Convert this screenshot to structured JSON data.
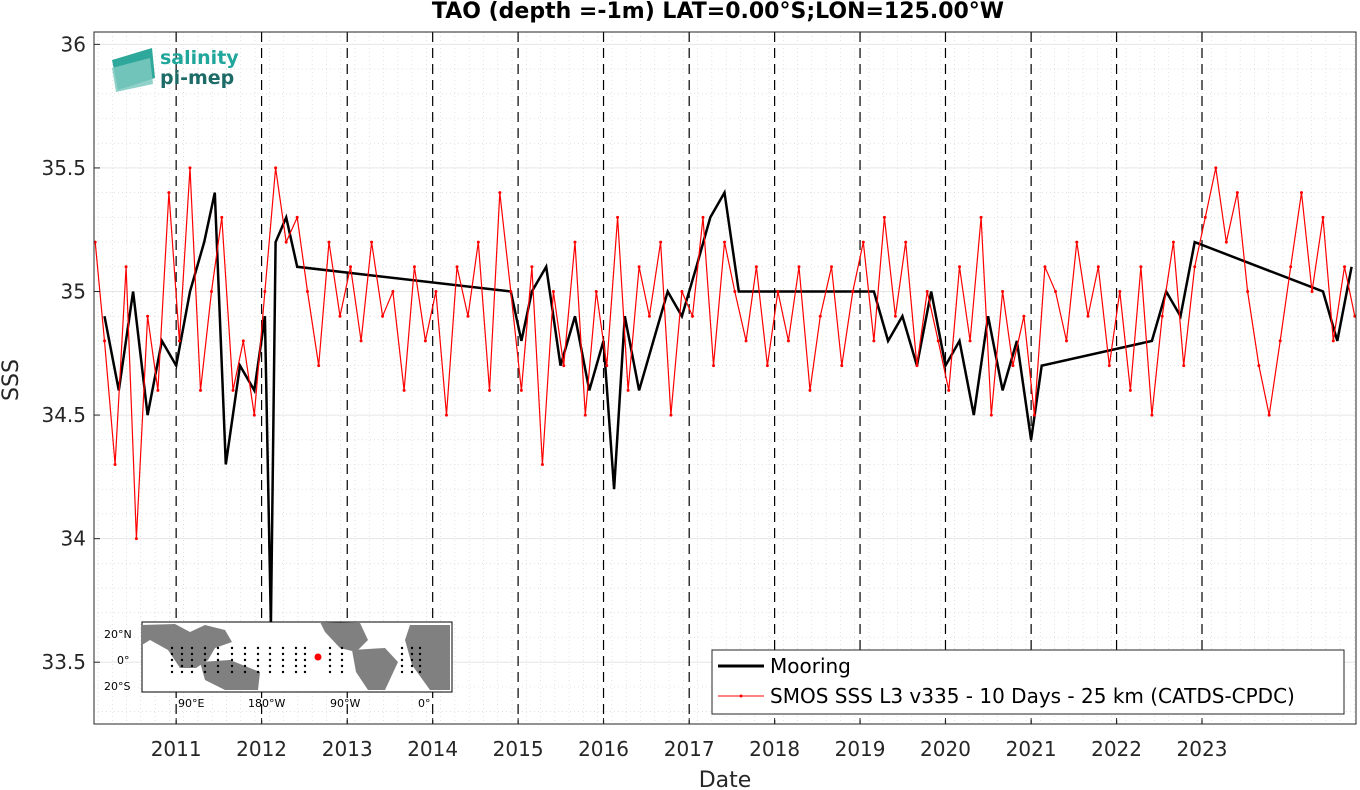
{
  "chart_data": {
    "type": "line",
    "title": "TAO (depth =-1m) LAT=0.00°S;LON=125.00°W",
    "xlabel": "Date",
    "ylabel": "SSS",
    "xlim": [
      "2010-01-15",
      "2024-10-20"
    ],
    "ylim": [
      33.25,
      36.05
    ],
    "yticks": [
      33.5,
      34,
      34.5,
      35,
      35.5,
      36
    ],
    "ytick_labels": [
      "33.5",
      "34",
      "34.5",
      "35",
      "35.5",
      "36"
    ],
    "xtick_labels": [
      "2011",
      "2012",
      "2013",
      "2014",
      "2015",
      "2016",
      "2017",
      "2018",
      "2019",
      "2020",
      "2021",
      "2022",
      "2023"
    ],
    "xtick_dates": [
      "2011-01-01",
      "2012-01-01",
      "2013-01-01",
      "2014-01-01",
      "2015-01-01",
      "2016-01-01",
      "2017-01-01",
      "2018-01-01",
      "2019-01-01",
      "2020-01-01",
      "2021-01-01",
      "2022-01-01",
      "2023-01-01"
    ],
    "vertical_dashed_lines_at_years": true,
    "grid": "minor dotted",
    "legend_position": "bottom-right",
    "series": [
      {
        "name": "Mooring",
        "color": "#000000",
        "x": [
          "2010-03-01",
          "2010-05-01",
          "2010-07-01",
          "2010-09-01",
          "2010-11-01",
          "2011-01-01",
          "2011-03-01",
          "2011-05-01",
          "2011-06-15",
          "2011-08-01",
          "2011-10-01",
          "2011-12-01",
          "2012-01-15",
          "2012-02-10",
          "2012-03-01",
          "2012-04-15",
          "2012-06-01",
          "2014-12-01",
          "2015-01-15",
          "2015-03-01",
          "2015-05-01",
          "2015-07-01",
          "2015-09-01",
          "2015-11-01",
          "2016-01-01",
          "2016-02-15",
          "2016-04-01",
          "2016-06-01",
          "2016-08-01",
          "2016-10-01",
          "2016-12-01",
          "2017-02-01",
          "2017-04-01",
          "2017-06-01",
          "2017-08-01",
          "2019-03-01",
          "2019-05-01",
          "2019-07-01",
          "2019-09-01",
          "2019-11-01",
          "2020-01-01",
          "2020-03-01",
          "2020-05-01",
          "2020-07-01",
          "2020-09-01",
          "2020-11-01",
          "2021-01-01",
          "2021-02-15",
          "2022-06-01",
          "2022-08-01",
          "2022-10-01",
          "2022-12-01",
          "2024-06-01",
          "2024-08-01",
          "2024-10-01"
        ],
        "y": [
          34.9,
          34.6,
          35.0,
          34.5,
          34.8,
          34.7,
          35.0,
          35.2,
          35.4,
          34.3,
          34.7,
          34.6,
          34.9,
          33.65,
          35.2,
          35.3,
          35.1,
          35.0,
          34.8,
          35.0,
          35.1,
          34.7,
          34.9,
          34.6,
          34.8,
          34.2,
          34.9,
          34.6,
          34.8,
          35.0,
          34.9,
          35.1,
          35.3,
          35.4,
          35.0,
          35.0,
          34.8,
          34.9,
          34.7,
          35.0,
          34.7,
          34.8,
          34.5,
          34.9,
          34.6,
          34.8,
          34.4,
          34.7,
          34.8,
          35.0,
          34.9,
          35.2,
          35.0,
          34.8,
          35.1
        ]
      },
      {
        "name": "SMOS SSS L3 v335 - 10 Days - 25 km (CATDS-CPDC)",
        "color": "#ff0000",
        "x": [
          "2010-01-20",
          "2010-03-01",
          "2010-04-15",
          "2010-06-01",
          "2010-07-15",
          "2010-09-01",
          "2010-10-15",
          "2010-12-01",
          "2011-01-15",
          "2011-03-01",
          "2011-04-15",
          "2011-06-01",
          "2011-07-15",
          "2011-09-01",
          "2011-10-15",
          "2011-12-01",
          "2012-01-15",
          "2012-03-01",
          "2012-04-15",
          "2012-06-01",
          "2012-07-15",
          "2012-09-01",
          "2012-10-15",
          "2012-12-01",
          "2013-01-15",
          "2013-03-01",
          "2013-04-15",
          "2013-06-01",
          "2013-07-15",
          "2013-09-01",
          "2013-10-15",
          "2013-12-01",
          "2014-01-15",
          "2014-03-01",
          "2014-04-15",
          "2014-06-01",
          "2014-07-15",
          "2014-09-01",
          "2014-10-15",
          "2014-12-01",
          "2015-01-15",
          "2015-03-01",
          "2015-04-15",
          "2015-06-01",
          "2015-07-15",
          "2015-09-01",
          "2015-10-15",
          "2015-12-01",
          "2016-01-15",
          "2016-03-01",
          "2016-04-15",
          "2016-06-01",
          "2016-07-15",
          "2016-09-01",
          "2016-10-15",
          "2016-12-01",
          "2017-01-15",
          "2017-03-01",
          "2017-04-15",
          "2017-06-01",
          "2017-07-15",
          "2017-09-01",
          "2017-10-15",
          "2017-12-01",
          "2018-01-15",
          "2018-03-01",
          "2018-04-15",
          "2018-06-01",
          "2018-07-15",
          "2018-09-01",
          "2018-10-15",
          "2018-12-01",
          "2019-01-15",
          "2019-03-01",
          "2019-04-15",
          "2019-06-01",
          "2019-07-15",
          "2019-09-01",
          "2019-10-15",
          "2019-12-01",
          "2020-01-15",
          "2020-03-01",
          "2020-04-15",
          "2020-06-01",
          "2020-07-15",
          "2020-09-01",
          "2020-10-15",
          "2020-12-01",
          "2021-01-15",
          "2021-03-01",
          "2021-04-15",
          "2021-06-01",
          "2021-07-15",
          "2021-09-01",
          "2021-10-15",
          "2021-12-01",
          "2022-01-15",
          "2022-03-01",
          "2022-04-15",
          "2022-06-01",
          "2022-07-15",
          "2022-09-01",
          "2022-10-15",
          "2022-12-01",
          "2023-01-15",
          "2023-03-01",
          "2023-04-15",
          "2023-06-01",
          "2023-07-15",
          "2023-09-01",
          "2023-10-15",
          "2023-12-01",
          "2024-01-15",
          "2024-03-01",
          "2024-04-15",
          "2024-06-01",
          "2024-07-15",
          "2024-09-01",
          "2024-10-15"
        ],
        "y": [
          35.2,
          34.8,
          34.3,
          35.1,
          34.0,
          34.9,
          34.6,
          35.4,
          34.8,
          35.5,
          34.6,
          35.0,
          35.3,
          34.6,
          34.8,
          34.5,
          35.0,
          35.5,
          35.2,
          35.3,
          35.0,
          34.7,
          35.2,
          34.9,
          35.1,
          34.8,
          35.2,
          34.9,
          35.0,
          34.6,
          35.1,
          34.8,
          35.0,
          34.5,
          35.1,
          34.9,
          35.2,
          34.6,
          35.4,
          35.0,
          34.6,
          35.1,
          34.3,
          35.0,
          34.7,
          35.2,
          34.5,
          35.0,
          34.7,
          35.3,
          34.6,
          35.1,
          34.9,
          35.2,
          34.5,
          35.0,
          34.9,
          35.3,
          34.7,
          35.2,
          35.0,
          34.8,
          35.1,
          34.7,
          35.0,
          34.8,
          35.1,
          34.6,
          34.9,
          35.1,
          34.7,
          35.0,
          35.2,
          34.8,
          35.3,
          34.9,
          35.2,
          34.7,
          35.0,
          34.8,
          34.6,
          35.1,
          34.8,
          35.3,
          34.5,
          35.0,
          34.7,
          34.9,
          34.5,
          35.1,
          35.0,
          34.8,
          35.2,
          34.9,
          35.1,
          34.7,
          35.0,
          34.6,
          35.1,
          34.5,
          34.9,
          35.2,
          34.7,
          35.1,
          35.3,
          35.5,
          35.2,
          35.4,
          35.0,
          34.7,
          34.5,
          34.8,
          35.1,
          35.4,
          35.0,
          35.3,
          34.8,
          35.1,
          34.9
        ]
      }
    ]
  },
  "logo": {
    "line1": "salinity",
    "line2": "pi-mep",
    "color1": "#20a69a",
    "color2": "#1d6b66"
  },
  "inset_map": {
    "lat_labels": [
      "20°N",
      "0°",
      "20°S"
    ],
    "lon_labels": [
      "90°E",
      "180°W",
      "90°W",
      "0°"
    ],
    "marker_color": "#ff0000"
  }
}
